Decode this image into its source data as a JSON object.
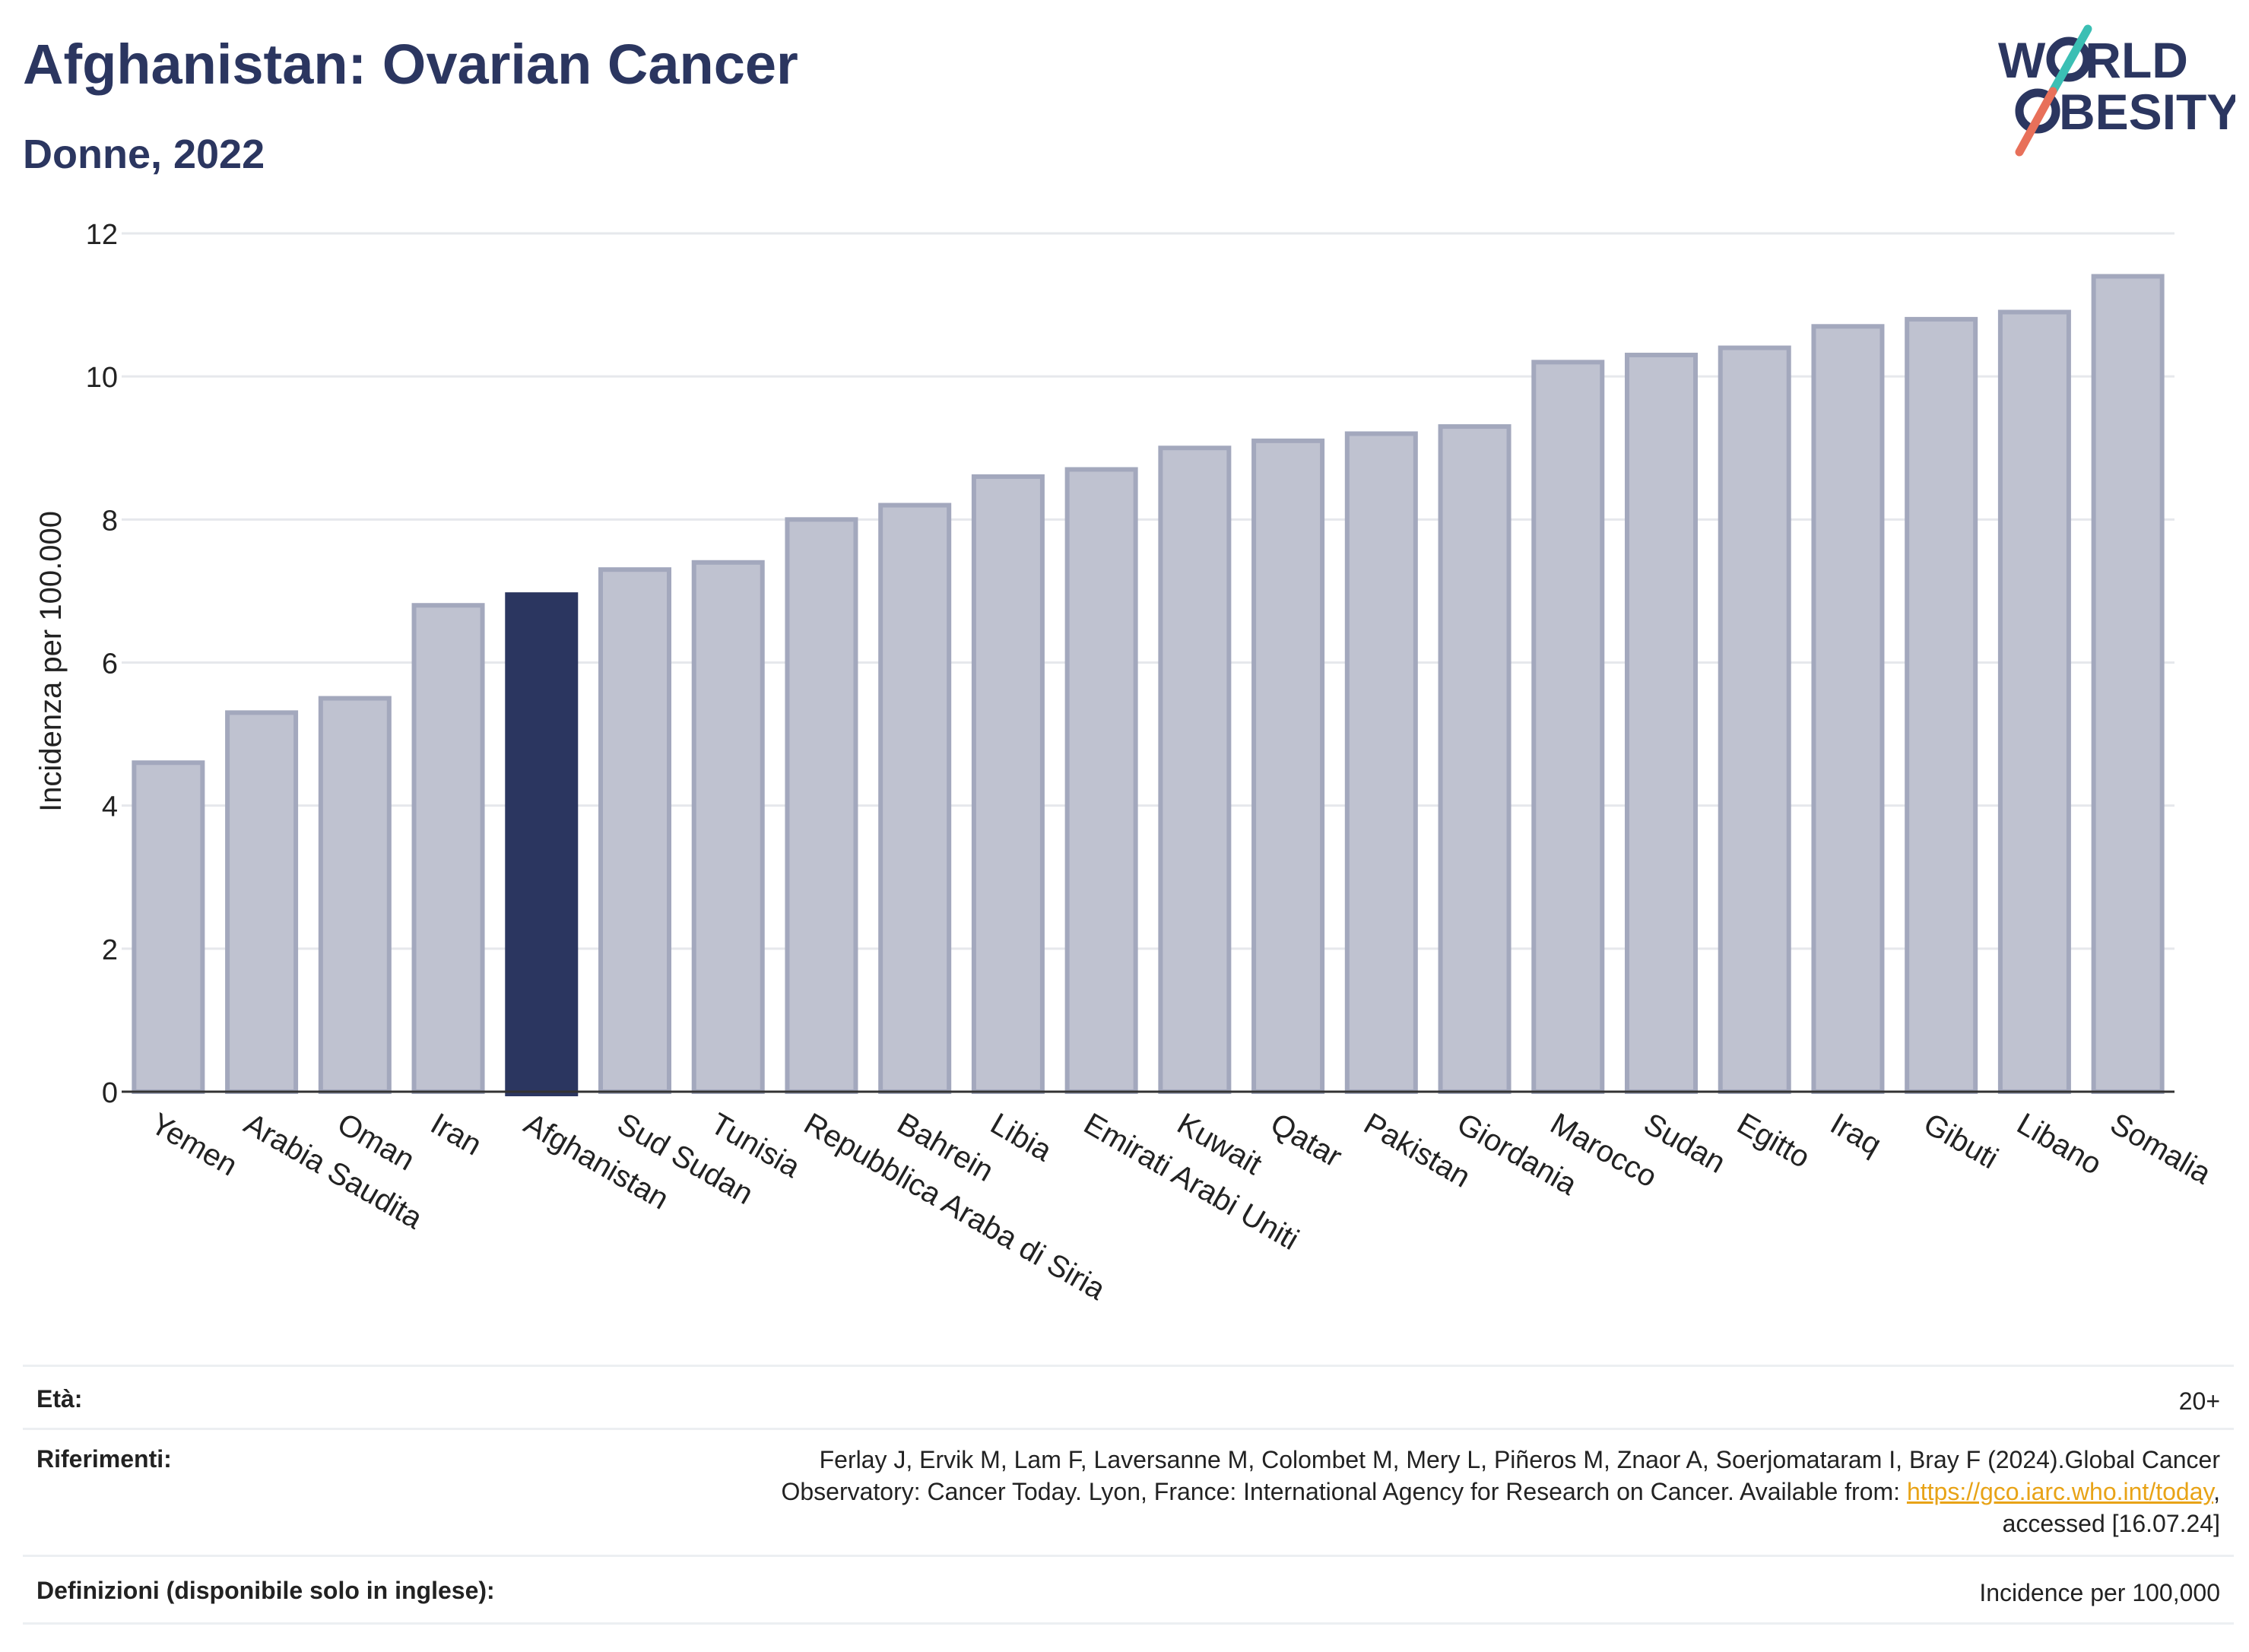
{
  "title": "Afghanistan: Ovarian Cancer",
  "subtitle": "Donne, 2022",
  "logo": {
    "line1_a": "W",
    "line1_b": "RLD",
    "line2_b": "BESITY",
    "accent_colors": [
      "#3bbfb4",
      "#e8705a"
    ]
  },
  "chart_data": {
    "type": "bar",
    "ylabel": "Incidenza per 100.000",
    "ylim": [
      0,
      12
    ],
    "yticks": [
      0,
      2,
      4,
      6,
      8,
      10,
      12
    ],
    "grid": true,
    "categories": [
      "Yemen",
      "Arabia Saudita",
      "Oman",
      "Iran",
      "Afghanistan",
      "Sud Sudan",
      "Tunisia",
      "Repubblica Araba di Siria",
      "Bahrein",
      "Libia",
      "Emirati Arabi Uniti",
      "Kuwait",
      "Qatar",
      "Pakistan",
      "Giordania",
      "Marocco",
      "Sudan",
      "Egitto",
      "Iraq",
      "Gibuti",
      "Libano",
      "Somalia"
    ],
    "values": [
      4.6,
      5.3,
      5.5,
      6.8,
      6.95,
      7.3,
      7.4,
      8.0,
      8.2,
      8.6,
      8.7,
      9.0,
      9.1,
      9.2,
      9.3,
      10.2,
      10.3,
      10.4,
      10.7,
      10.8,
      10.9,
      11.4
    ],
    "highlight": "Afghanistan",
    "colors": {
      "highlight": "#2b3660",
      "bar_fill": "#bfc2d0",
      "bar_stroke": "#a3a8bd"
    }
  },
  "meta": {
    "age_label": "Età:",
    "age_value": "20+",
    "ref_label": "Riferimenti:",
    "ref_line1": "Ferlay J, Ervik M, Lam F, Laversanne M, Colombet M, Mery L, Piñeros M, Znaor A, Soerjomataram I, Bray F (2024).Global Cancer",
    "ref_line2_pre": "Observatory: Cancer Today. Lyon, France: International Agency for Research on Cancer. Available from: ",
    "ref_link": "https://gco.iarc.who.int/today",
    "ref_line2_post": ",",
    "ref_line3": "accessed [16.07.24]",
    "def_label": "Definizioni (disponibile solo in inglese):",
    "def_value": "Incidence per 100,000"
  }
}
